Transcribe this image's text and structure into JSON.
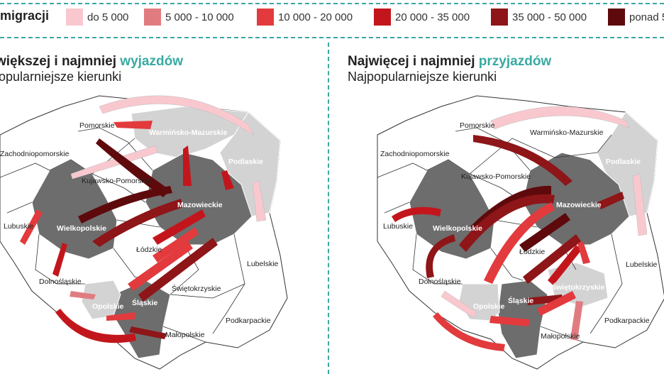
{
  "legend": {
    "title": "migracji",
    "items": [
      {
        "label": "do 5 000",
        "color": "#f9c8cf"
      },
      {
        "label": "5 000 - 10 000",
        "color": "#e07c80"
      },
      {
        "label": "10 000 - 20 000",
        "color": "#e23a3d"
      },
      {
        "label": "20 000 - 35 000",
        "color": "#c3161c"
      },
      {
        "label": "35 000 - 50 000",
        "color": "#8e1518"
      },
      {
        "label": "ponad 5",
        "color": "#5e0a0c"
      }
    ]
  },
  "left_panel": {
    "title_start": "większej i najmniej ",
    "title_accent": "wyjazdów",
    "subtitle": "opularniejsze kierunki",
    "regions": [
      "Pomorskie",
      "Warmińsko-Mazurskie",
      "Zachodniopomorskie",
      "Podlaskie",
      "Kujawsko-Pomorskie",
      "Mazowieckie",
      "Lubuskie",
      "Wielkopolskie",
      "Łódzkie",
      "Lubelskie",
      "Dolnośląskie",
      "Świętokrzyskie",
      "Opolskie",
      "Śląskie",
      "Podkarpackie",
      "Małopolskie"
    ]
  },
  "right_panel": {
    "title_start": "Najwięcej i najmniej ",
    "title_accent": "przyjazdów",
    "subtitle": "Najpopularniejsze kierunki",
    "regions": [
      "Pomorskie",
      "Warmińsko-Mazurskie",
      "Zachodniopomorskie",
      "Podlaskie",
      "Kujawsko-Pomorskie",
      "Mazowieckie",
      "Lubuskie",
      "Wielkopolskie",
      "Łódzkie",
      "Lubelskie",
      "Dolnośląskie",
      "Świętokrzyskie",
      "Opolskie",
      "Śląskie",
      "Podkarpackie",
      "Małopolskie"
    ]
  }
}
